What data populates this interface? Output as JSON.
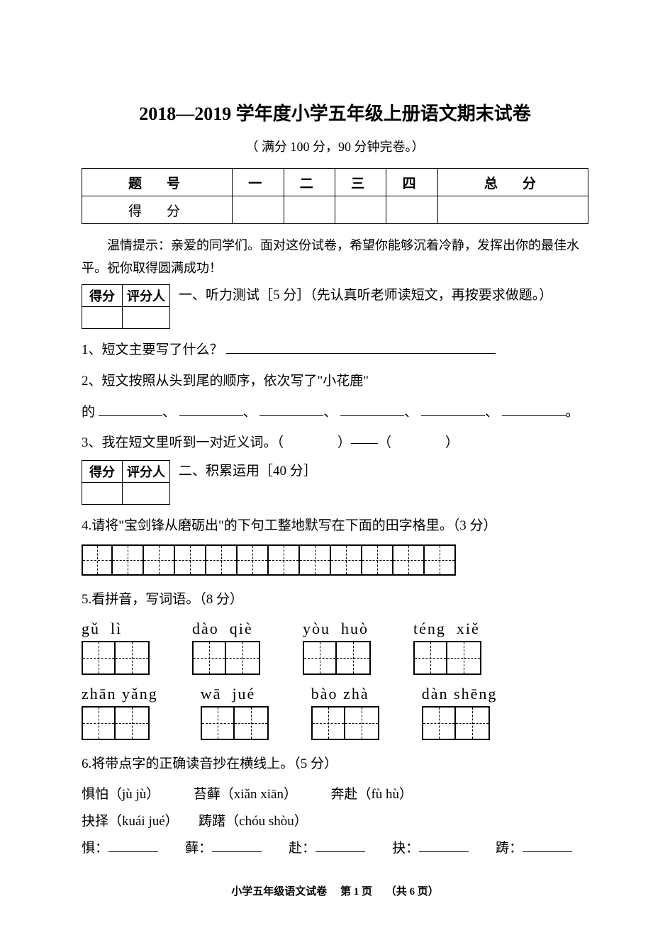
{
  "title": "2018—2019 学年度小学五年级上册语文期末试卷",
  "subtitle": "（ 满分 100 分，90 分钟完卷。）",
  "score_table": {
    "headers": [
      "题　号",
      "一",
      "二",
      "三",
      "四",
      "总　分"
    ],
    "row_label": "得　分"
  },
  "tip": "温情提示：亲爱的同学们。面对这份试卷，希望你能够沉着冷静，发挥出你的最佳水平。祝你取得圆满成功！",
  "mini": {
    "h1": "得分",
    "h2": "评分人"
  },
  "section1": {
    "title": "一、听力测试［5 分］（先认真听老师读短文，再按要求做题。）",
    "q1": "1、短文主要写了什么？",
    "q2a": "2、短文按照从头到尾的顺序，依次写了\"小花鹿\"",
    "q2b": "的",
    "q3": "3、我在短文里听到一对近义词。（　　　　）——（　　　　）"
  },
  "section2": {
    "title": "二、积累运用［40 分］",
    "q4": "4.请将\"宝剑锋从磨砺出\"的下句工整地默写在下面的田字格里。（3 分）",
    "tian_count": 12,
    "q5": "5.看拼音，写词语。（8 分）",
    "pinyin_row1": [
      "gǔ  lì",
      "dào  qiè",
      "yòu  huò",
      "téng  xiě"
    ],
    "pinyin_row2": [
      "zhān yǎng",
      "wā  jué",
      "bào zhà",
      "dàn shēng"
    ],
    "q6": "6.将带点字的正确读音抄在横线上。（5 分）",
    "q6_line1": "惧怕（jù jù）　　　苔藓（xiǎn xiān）　　　奔赴（fù hù）",
    "q6_line2": "抉择（kuái jué）　　踌躇（chóu shòu）",
    "q6_blanks_prefix": [
      "惧：",
      "藓：",
      "赴：",
      "抉：",
      "踌："
    ]
  },
  "footer": {
    "left": "小学五年级语文试卷",
    "mid": "第 1 页",
    "right": "（共 6 页）"
  }
}
